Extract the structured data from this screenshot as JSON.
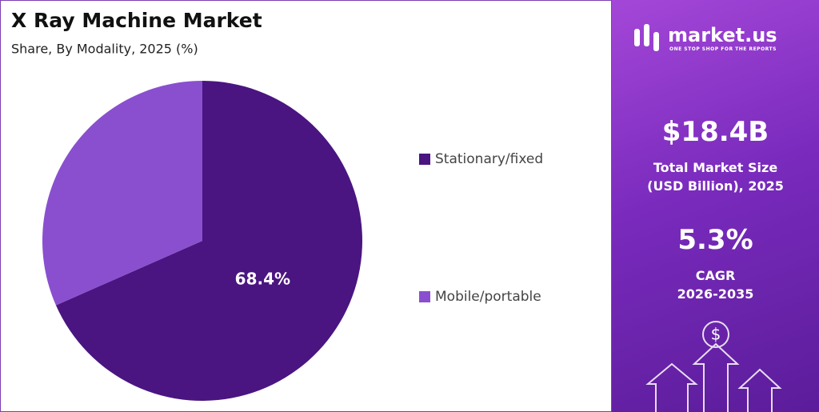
{
  "chart_data": {
    "type": "pie",
    "title": "X Ray Machine Market",
    "subtitle": "Share, By Modality, 2025 (%)",
    "categories": [
      "Stationary/fixed",
      "Mobile/portable"
    ],
    "values": [
      68.4,
      31.6
    ],
    "value_labels": [
      "68.4%",
      null
    ],
    "colors": [
      "#4a1580",
      "#8a4fcf"
    ]
  },
  "panel": {
    "brand": "market.us",
    "tagline": "ONE STOP SHOP FOR THE REPORTS",
    "market_size": "$18.4B",
    "market_size_label": [
      "Total Market Size",
      "(USD Billion), 2025"
    ],
    "cagr": "5.3%",
    "cagr_label": [
      "CAGR",
      "2026-2035"
    ]
  }
}
